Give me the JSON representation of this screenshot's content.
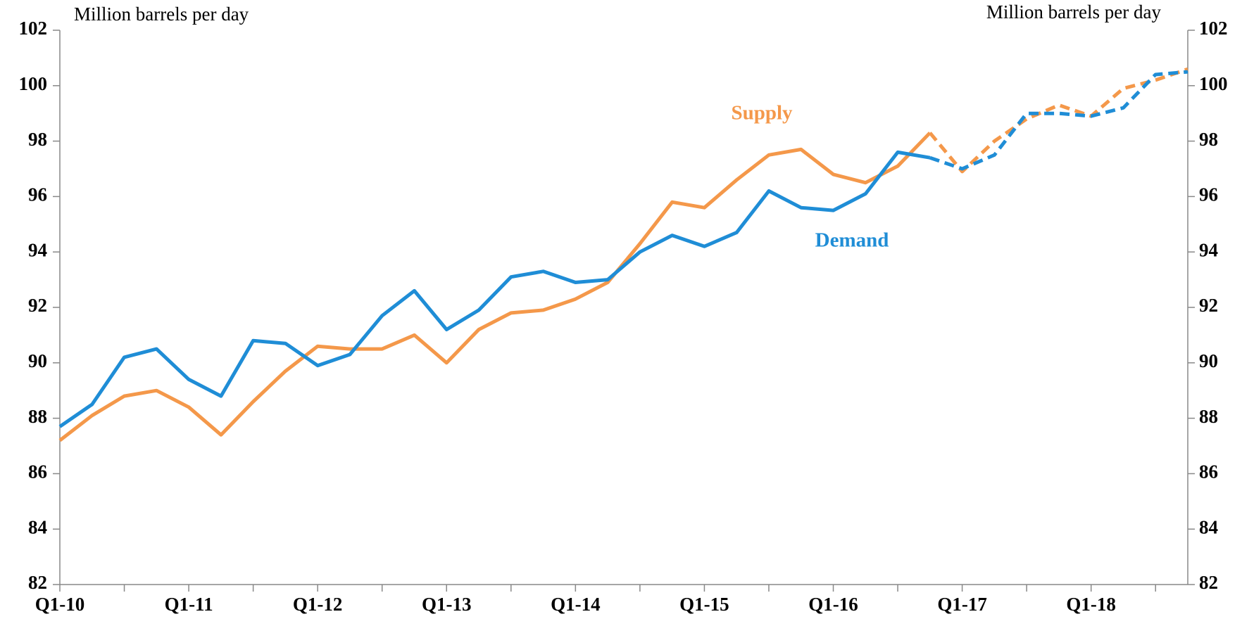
{
  "chart_data": {
    "type": "line",
    "y_label": "Million barrels per day",
    "y2_label": "Million barrels per day",
    "annotations": [
      "Supply",
      "Demand"
    ],
    "categories": [
      "Q1-10",
      null,
      null,
      null,
      "Q1-11",
      null,
      null,
      null,
      "Q1-12",
      null,
      null,
      null,
      "Q1-13",
      null,
      null,
      null,
      "Q1-14",
      null,
      null,
      null,
      "Q1-15",
      null,
      null,
      null,
      "Q1-16",
      null,
      null,
      null,
      "Q1-17",
      null,
      null,
      null,
      "Q1-18",
      null,
      null,
      null
    ],
    "series": [
      {
        "name": "Supply",
        "color": "#f4984a",
        "dashed_from": 27,
        "values": [
          87.2,
          88.1,
          88.8,
          89.0,
          88.4,
          87.4,
          88.6,
          89.7,
          90.6,
          90.5,
          90.5,
          91.0,
          90.0,
          91.2,
          91.8,
          91.9,
          92.3,
          92.9,
          94.3,
          95.8,
          95.6,
          96.6,
          97.5,
          97.7,
          96.8,
          96.5,
          97.1,
          98.3,
          96.9,
          98.0,
          98.8,
          99.3,
          98.9,
          99.9,
          100.2,
          100.6
        ]
      },
      {
        "name": "Demand",
        "color": "#1f8dd6",
        "dashed_from": 27,
        "values": [
          87.7,
          88.5,
          90.2,
          90.5,
          89.4,
          88.8,
          90.8,
          90.7,
          89.9,
          90.3,
          91.7,
          92.6,
          91.2,
          91.9,
          93.1,
          93.3,
          92.9,
          93.0,
          94.0,
          94.6,
          94.2,
          94.7,
          96.2,
          95.6,
          95.5,
          96.1,
          97.6,
          97.4,
          97.0,
          97.5,
          99.0,
          99.0,
          98.9,
          99.2,
          100.4,
          100.5
        ]
      }
    ],
    "ylim": [
      82,
      102
    ],
    "yticks": [
      82,
      84,
      86,
      88,
      90,
      92,
      94,
      96,
      98,
      100,
      102
    ],
    "y2lim": [
      82,
      102
    ],
    "y2ticks": [
      82,
      84,
      86,
      88,
      90,
      92,
      94,
      96,
      98,
      100,
      102
    ],
    "grid": false
  }
}
